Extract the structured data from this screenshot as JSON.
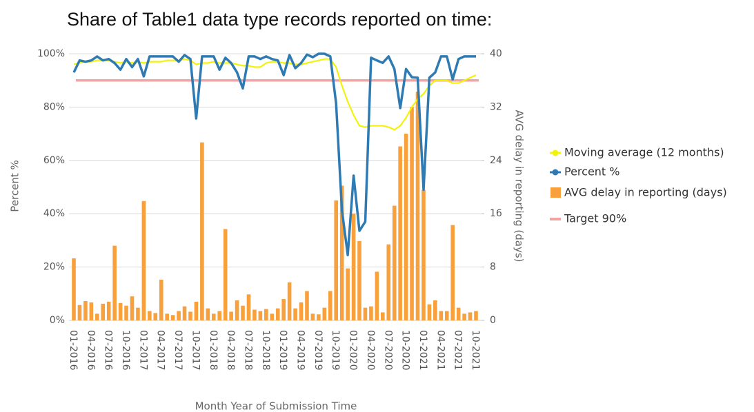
{
  "chart_data": {
    "type": "bar",
    "title": "Share of Table1 data type records reported on time:",
    "xlabel": "Month Year of Submission Time",
    "ylabel": "Percent %",
    "y2label": "AVG delay in reporting (days)",
    "categories": [
      "01-2016",
      null,
      null,
      "04-2016",
      null,
      null,
      "07-2016",
      null,
      null,
      "10-2016",
      null,
      null,
      "01-2017",
      null,
      null,
      "04-2017",
      null,
      null,
      "07-2017",
      null,
      null,
      "10-2017",
      null,
      null,
      "01-2018",
      null,
      null,
      "04-2018",
      null,
      null,
      "07-2018",
      null,
      null,
      "10-2018",
      null,
      null,
      "01-2019",
      null,
      null,
      "04-2019",
      null,
      null,
      "07-2019",
      null,
      null,
      "10-2019",
      null,
      null,
      "01-2020",
      null,
      null,
      "04-2020",
      null,
      null,
      "07-2020",
      null,
      null,
      "10-2020",
      null,
      null,
      "01-2021",
      null,
      null,
      "04-2021",
      null,
      null,
      "07-2021",
      null,
      null,
      "10-2021"
    ],
    "series": [
      {
        "name": "Moving average (12 months)",
        "type": "line",
        "color": "#f2f20a",
        "values": [
          96,
          96.5,
          97,
          97,
          97.5,
          97.5,
          97.5,
          97,
          96.5,
          97,
          96.5,
          97,
          96.5,
          97,
          97,
          97,
          97.5,
          97.5,
          97.5,
          98,
          97.5,
          96,
          96.5,
          96.5,
          97,
          96.5,
          96.5,
          96.5,
          96,
          95.5,
          95.5,
          95,
          95,
          96.5,
          97,
          97,
          96.5,
          96.5,
          96,
          96,
          96.5,
          97,
          97.5,
          98,
          98,
          95,
          88,
          82,
          77,
          73,
          72.5,
          73,
          73,
          73,
          72.5,
          71.5,
          73,
          76,
          80,
          83,
          85,
          88,
          90,
          90,
          90,
          89,
          89,
          90,
          91,
          92
        ]
      },
      {
        "name": "Percent %",
        "type": "line",
        "color": "#2e7bb4",
        "values": [
          93,
          97.5,
          97,
          97.5,
          99,
          97.5,
          98,
          96.5,
          94,
          98,
          95,
          98,
          91.5,
          99,
          99,
          99,
          99,
          99,
          97,
          99.5,
          98,
          75.7,
          99,
          99,
          99,
          94,
          98.5,
          96.5,
          93,
          87,
          99,
          99,
          98,
          99,
          98,
          97.5,
          92,
          99.5,
          94.6,
          96.5,
          99.7,
          98.7,
          100,
          100,
          99,
          81.4,
          41.3,
          24.5,
          54.3,
          33.6,
          37,
          98.5,
          97.5,
          96.6,
          99,
          94.3,
          79.6,
          94.3,
          91.2,
          91,
          49,
          91,
          93,
          99,
          99,
          90.4,
          98,
          99,
          99,
          99
        ]
      },
      {
        "name": "AVG delay in reporting (days)",
        "type": "bar",
        "axis": "y2",
        "color": "#f7a03c",
        "values": [
          9.3,
          2.3,
          2.9,
          2.7,
          1.0,
          2.5,
          2.8,
          11.2,
          2.6,
          2.2,
          3.6,
          1.9,
          17.9,
          1.4,
          1.1,
          6.1,
          1.0,
          0.8,
          1.4,
          2.1,
          1.3,
          2.8,
          26.7,
          1.8,
          1.0,
          1.4,
          13.7,
          1.3,
          3.0,
          2.2,
          3.9,
          1.6,
          1.4,
          1.7,
          1.0,
          1.8,
          3.2,
          5.7,
          1.8,
          2.7,
          4.4,
          1.0,
          0.9,
          1.9,
          4.4,
          18,
          20.2,
          7.8,
          16,
          11.9,
          1.9,
          2.1,
          7.3,
          1.2,
          11.4,
          17.2,
          26.1,
          28,
          32,
          34.3,
          19.6,
          2.4,
          3.0,
          1.4,
          1.4,
          14.3,
          1.9,
          1.0,
          1.2,
          1.4
        ]
      }
    ],
    "target": {
      "name": "Target 90%",
      "value": 90,
      "color": "#f4a3a3"
    },
    "ylim": [
      0,
      100
    ],
    "yticks": [
      {
        "value": 0,
        "label": "0%"
      },
      {
        "value": 20,
        "label": "20%"
      },
      {
        "value": 40,
        "label": "40%"
      },
      {
        "value": 60,
        "label": "60%"
      },
      {
        "value": 80,
        "label": "80%"
      },
      {
        "value": 100,
        "label": "100%"
      }
    ],
    "y2lim": [
      0,
      40
    ],
    "y2ticks": [
      0,
      8,
      16,
      24,
      32,
      40
    ],
    "grid": true,
    "legend": "right"
  }
}
